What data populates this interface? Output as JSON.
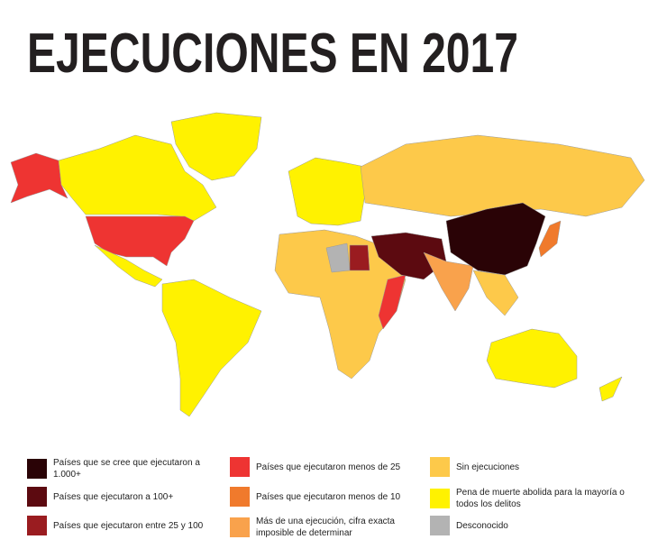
{
  "header": {
    "title": "EJECUCIONES EN 2017"
  },
  "legend": {
    "items": [
      {
        "label": "Países que se cree que ejecutaron a 1.000+",
        "color": "#2a0306"
      },
      {
        "label": "Países que ejecutaron a 100+",
        "color": "#5c0a10"
      },
      {
        "label": "Países que ejecutaron entre 25 y 100",
        "color": "#9a1c20"
      },
      {
        "label": "Países que ejecutaron menos de 25",
        "color": "#ee3432"
      },
      {
        "label": "Países que ejecutaron menos de 10",
        "color": "#f07a2c"
      },
      {
        "label": "Más de una ejecución, cifra exacta imposible de determinar",
        "color": "#f9a24c"
      },
      {
        "label": "Sin ejecuciones",
        "color": "#fdc94a"
      },
      {
        "label": "Pena de muerte abolida para la mayoría o todos los delitos",
        "color": "#fff200"
      },
      {
        "label": "Desconocido",
        "color": "#b3b3b3"
      }
    ]
  }
}
